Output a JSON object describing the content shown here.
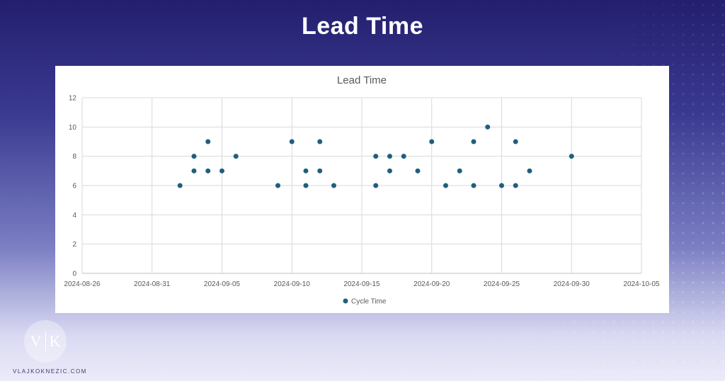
{
  "page": {
    "title": "Lead Time"
  },
  "brand": {
    "logo_left": "V",
    "logo_right": "K",
    "site": "VLAJKOKNEZIC.COM"
  },
  "chart_data": {
    "type": "scatter",
    "title": "Lead Time",
    "xlabel": "",
    "ylabel": "",
    "xlim": [
      "2024-08-26",
      "2024-10-05"
    ],
    "ylim": [
      0,
      12
    ],
    "x_ticks": [
      "2024-08-26",
      "2024-08-31",
      "2024-09-05",
      "2024-09-10",
      "2024-09-15",
      "2024-09-20",
      "2024-09-25",
      "2024-09-30",
      "2024-10-05"
    ],
    "y_ticks": [
      0,
      2,
      4,
      6,
      8,
      10,
      12
    ],
    "grid": true,
    "legend": "bottom",
    "series": [
      {
        "name": "Cycle Time",
        "color": "#1f5f7f",
        "points": [
          {
            "x": "2024-09-02",
            "y": 6
          },
          {
            "x": "2024-09-03",
            "y": 8
          },
          {
            "x": "2024-09-03",
            "y": 7
          },
          {
            "x": "2024-09-04",
            "y": 9
          },
          {
            "x": "2024-09-04",
            "y": 7
          },
          {
            "x": "2024-09-05",
            "y": 7
          },
          {
            "x": "2024-09-06",
            "y": 8
          },
          {
            "x": "2024-09-09",
            "y": 6
          },
          {
            "x": "2024-09-10",
            "y": 9
          },
          {
            "x": "2024-09-11",
            "y": 7
          },
          {
            "x": "2024-09-11",
            "y": 6
          },
          {
            "x": "2024-09-12",
            "y": 9
          },
          {
            "x": "2024-09-12",
            "y": 7
          },
          {
            "x": "2024-09-13",
            "y": 6
          },
          {
            "x": "2024-09-16",
            "y": 8
          },
          {
            "x": "2024-09-16",
            "y": 6
          },
          {
            "x": "2024-09-17",
            "y": 8
          },
          {
            "x": "2024-09-17",
            "y": 7
          },
          {
            "x": "2024-09-18",
            "y": 8
          },
          {
            "x": "2024-09-19",
            "y": 7
          },
          {
            "x": "2024-09-20",
            "y": 9
          },
          {
            "x": "2024-09-21",
            "y": 6
          },
          {
            "x": "2024-09-22",
            "y": 7
          },
          {
            "x": "2024-09-23",
            "y": 9
          },
          {
            "x": "2024-09-23",
            "y": 6
          },
          {
            "x": "2024-09-24",
            "y": 10
          },
          {
            "x": "2024-09-25",
            "y": 6
          },
          {
            "x": "2024-09-26",
            "y": 9
          },
          {
            "x": "2024-09-26",
            "y": 6
          },
          {
            "x": "2024-09-27",
            "y": 7
          },
          {
            "x": "2024-09-30",
            "y": 8
          }
        ]
      }
    ]
  }
}
